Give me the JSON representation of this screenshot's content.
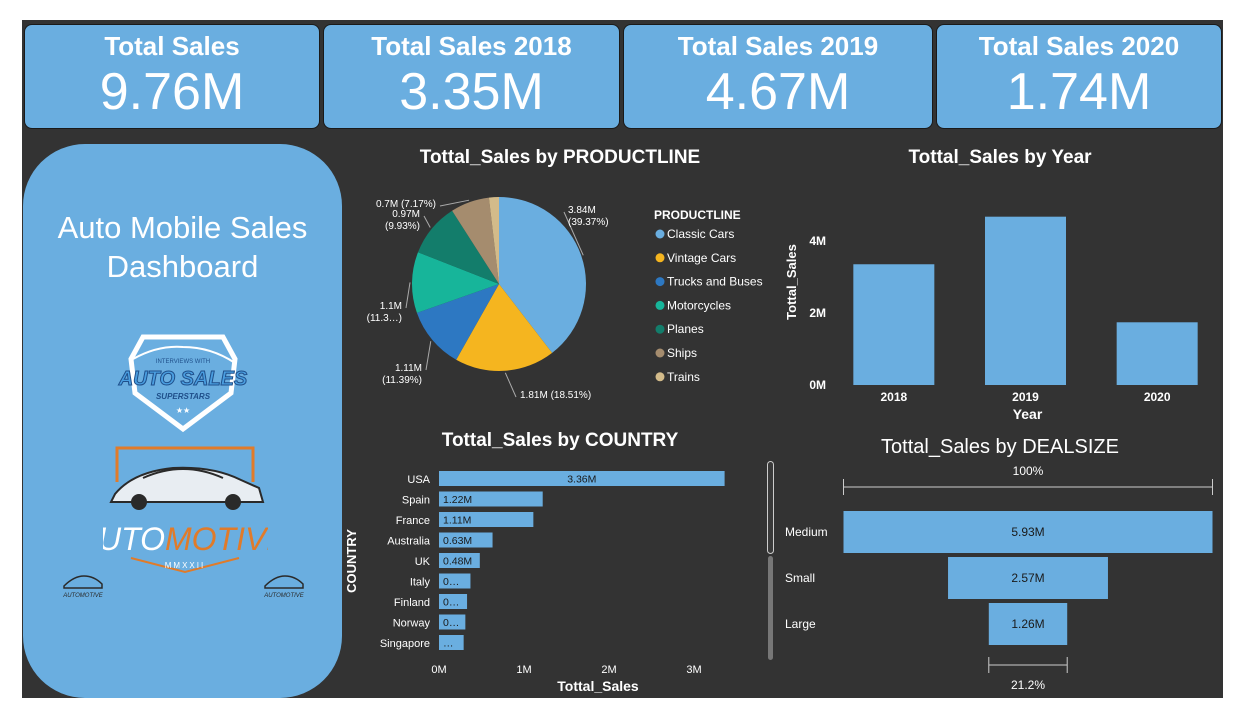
{
  "kpis": [
    {
      "title": "Total Sales",
      "value": "9.76M"
    },
    {
      "title": "Total Sales 2018",
      "value": "3.35M"
    },
    {
      "title": "Total Sales 2019",
      "value": "4.67M"
    },
    {
      "title": "Total Sales 2020",
      "value": "1.74M"
    }
  ],
  "sidebar": {
    "title": "Auto Mobile Sales Dashboard",
    "logo_top": {
      "line1": "INTERVIEWS WITH",
      "line2": "AUTO SALES",
      "line3": "SUPERSTARS"
    },
    "logo_main": {
      "part1": "AUTO",
      "part2": "MOTIVE",
      "sub": "MMXXII"
    },
    "logo_small": "AUTOMOTIVE"
  },
  "colors": {
    "accent": "#6aaee0",
    "background": "#333333",
    "brand_orange": "#e07b2a"
  },
  "chart_data": [
    {
      "type": "pie",
      "title": "Tottal_Sales by PRODUCTLINE",
      "legend_title": "PRODUCTLINE",
      "legend_position": "right",
      "slices": [
        {
          "name": "Classic Cars",
          "value": 3.84,
          "label": "3.84M\n(39.37%)",
          "color": "#6aaee0"
        },
        {
          "name": "Vintage Cars",
          "value": 1.81,
          "label": "1.81M (18.51%)",
          "color": "#f5b51f"
        },
        {
          "name": "Trucks and Buses",
          "value": 1.11,
          "label": "1.11M\n(11.39%)",
          "color": "#2d78c2"
        },
        {
          "name": "Motorcycles",
          "value": 1.1,
          "label": "1.1M\n(11.3…)",
          "color": "#17b59a"
        },
        {
          "name": "Planes",
          "value": 0.97,
          "label": "0.97M\n(9.93%)",
          "color": "#137d6b"
        },
        {
          "name": "Ships",
          "value": 0.7,
          "label": "0.7M (7.17%)",
          "color": "#a58c6e"
        },
        {
          "name": "Trains",
          "value": 0.18,
          "label": "",
          "color": "#d3bb8a"
        }
      ]
    },
    {
      "type": "bar",
      "title": "Tottal_Sales by Year",
      "xlabel": "Year",
      "ylabel": "Tottal_Sales",
      "categories": [
        "2018",
        "2019",
        "2020"
      ],
      "values": [
        3.35,
        4.67,
        1.74
      ],
      "yticks": [
        "0M",
        "2M",
        "4M"
      ],
      "ylim": [
        0,
        4.8
      ]
    },
    {
      "type": "bar",
      "orientation": "horizontal",
      "title": "Tottal_Sales by COUNTRY",
      "xlabel": "Tottal_Sales",
      "ylabel": "COUNTRY",
      "categories": [
        "USA",
        "Spain",
        "France",
        "Australia",
        "UK",
        "Italy",
        "Finland",
        "Norway",
        "Singapore"
      ],
      "values": [
        3.36,
        1.22,
        1.11,
        0.63,
        0.48,
        0.37,
        0.33,
        0.31,
        0.29
      ],
      "labels": [
        "3.36M",
        "1.22M",
        "1.11M",
        "0.63M",
        "0.48M",
        "0…",
        "0…",
        "0…",
        "…"
      ],
      "xticks": [
        "0M",
        "1M",
        "2M",
        "3M"
      ],
      "xlim": [
        0,
        3.36
      ]
    },
    {
      "type": "funnel",
      "title": "Tottal_Sales by DEALSIZE",
      "categories": [
        "Medium",
        "Small",
        "Large"
      ],
      "values": [
        5.93,
        2.57,
        1.26
      ],
      "labels": [
        "5.93M",
        "2.57M",
        "1.26M"
      ],
      "top_label": "100%",
      "bottom_label": "21.2%"
    }
  ]
}
